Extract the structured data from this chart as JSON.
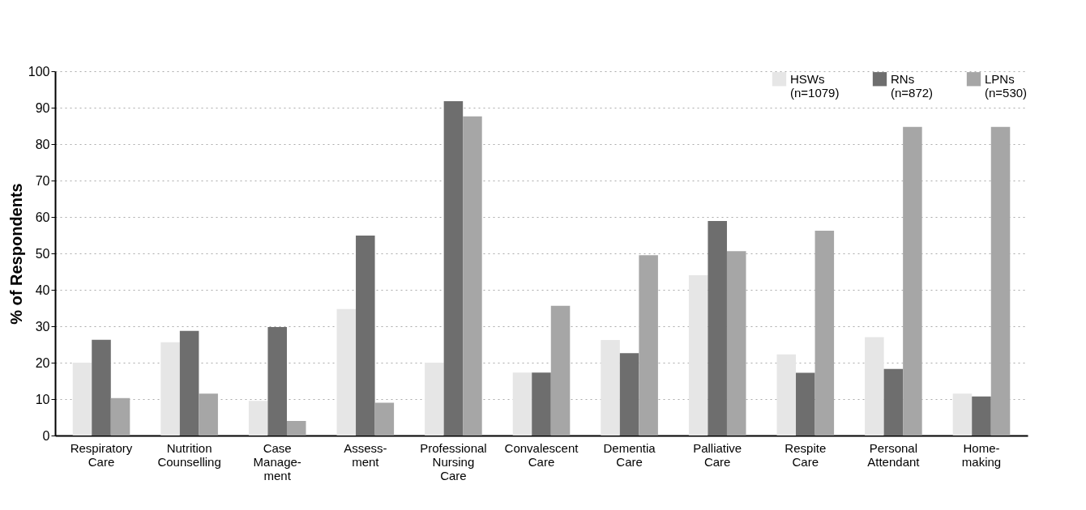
{
  "chart_data": {
    "type": "bar",
    "ylabel": "% of Respondents",
    "categories": [
      "Respiratory\nCare",
      "Nutrition\nCounselling",
      "Case\nManage-\nment",
      "Assess-\nment",
      "Professional\nNursing\nCare",
      "Convalescent\nCare",
      "Dementia\nCare",
      "Palliative\nCare",
      "Respite\nCare",
      "Personal\nAttendant",
      "Home-\nmaking"
    ],
    "series": [
      {
        "name": "HSWs\n(n=1079)",
        "color": "#e6e6e6",
        "values": [
          20.0,
          25.6,
          9.5,
          34.7,
          20.0,
          17.3,
          26.2,
          44.0,
          22.3,
          27.0,
          11.5
        ]
      },
      {
        "name": "RNs\n(n=872)",
        "color": "#6e6e6e",
        "values": [
          26.3,
          28.7,
          29.8,
          54.9,
          91.8,
          17.3,
          22.6,
          58.9,
          17.2,
          18.3,
          10.7
        ]
      },
      {
        "name": "LPNs\n(n=530)",
        "color": "#a6a6a6",
        "values": [
          10.3,
          11.5,
          4.0,
          9.0,
          87.6,
          35.6,
          49.5,
          50.6,
          56.2,
          84.7,
          84.7
        ]
      }
    ],
    "ylim": [
      0,
      100
    ],
    "yticks": [
      0,
      10,
      20,
      30,
      40,
      50,
      60,
      70,
      80,
      90,
      100
    ],
    "grid": "y",
    "legend": "top right"
  }
}
